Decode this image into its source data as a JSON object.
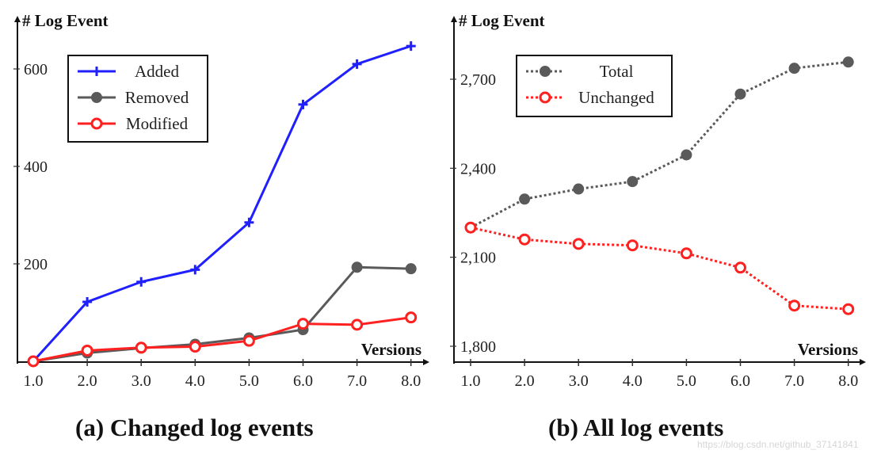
{
  "chart_data": [
    {
      "type": "line",
      "title": "(a) Changed log events",
      "xlabel": "Versions",
      "ylabel": "# Log Event",
      "categories": [
        "1.0",
        "2.0",
        "3.0",
        "4.0",
        "5.0",
        "6.0",
        "7.0",
        "8.0"
      ],
      "yticks": [
        "200",
        "400",
        "600"
      ],
      "ylim": [
        0,
        700
      ],
      "grid": false,
      "legend_position": "upper left",
      "series": [
        {
          "name": "Added",
          "color": "#1f1fff",
          "marker": "plus",
          "style": "solid",
          "values": [
            0,
            122,
            163,
            188,
            285,
            527,
            610,
            647
          ]
        },
        {
          "name": "Removed",
          "color": "#5a5a5a",
          "marker": "circle-filled",
          "style": "solid",
          "values": [
            0,
            17,
            27,
            35,
            48,
            65,
            193,
            190
          ]
        },
        {
          "name": "Modified",
          "color": "#ff2020",
          "marker": "circle-open",
          "style": "solid",
          "values": [
            0,
            22,
            28,
            30,
            42,
            77,
            75,
            90
          ]
        }
      ]
    },
    {
      "type": "line",
      "title": "(b) All log events",
      "xlabel": "Versions",
      "ylabel": "# Log Event",
      "categories": [
        "1.0",
        "2.0",
        "3.0",
        "4.0",
        "5.0",
        "6.0",
        "7.0",
        "8.0"
      ],
      "yticks": [
        "1,800",
        "2,100",
        "2,400",
        "2,700"
      ],
      "ylim": [
        1800,
        2800
      ],
      "grid": false,
      "legend_position": "upper left",
      "series": [
        {
          "name": "Total",
          "color": "#5a5a5a",
          "marker": "circle-filled",
          "style": "dotted",
          "values": [
            2200,
            2296,
            2330,
            2355,
            2445,
            2650,
            2737,
            2758
          ]
        },
        {
          "name": "Unchanged",
          "color": "#ff2020",
          "marker": "circle-open",
          "style": "dotted",
          "values": [
            2200,
            2160,
            2145,
            2140,
            2113,
            2065,
            1937,
            1925
          ]
        }
      ]
    }
  ],
  "captions": {
    "a": "(a) Changed log events",
    "b": "(b) All log events"
  },
  "watermark": "https://blog.csdn.net/github_37141841"
}
